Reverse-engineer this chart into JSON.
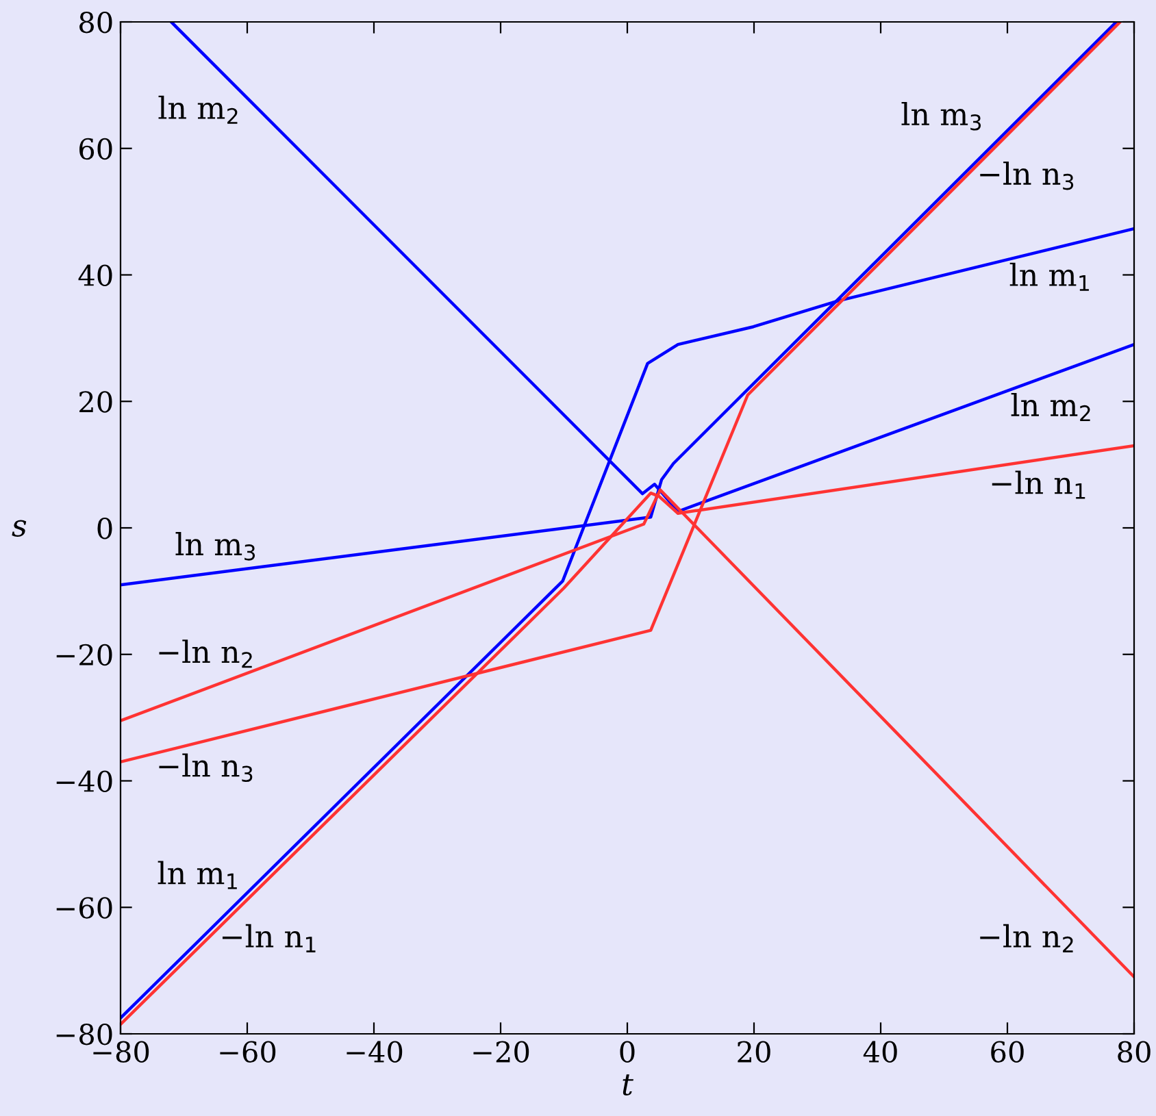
{
  "chart_data": {
    "type": "line",
    "xlabel": "t",
    "ylabel": "s",
    "xlim": [
      -80,
      80
    ],
    "ylim": [
      -80,
      80
    ],
    "xticks": [
      -80,
      -60,
      -40,
      -20,
      0,
      20,
      40,
      60,
      80
    ],
    "yticks": [
      -80,
      -60,
      -40,
      -20,
      0,
      20,
      40,
      60,
      80
    ],
    "grid": false,
    "legend": false,
    "marker": "none",
    "line_style": "solid",
    "series": [
      {
        "color": "#0000ff",
        "x": [
          -80,
          -10.2,
          3.2,
          8,
          19.9,
          33.3,
          80
        ],
        "values": [
          -77.5,
          -8.4,
          26,
          29,
          31.8,
          35.9,
          47.3
        ]
      },
      {
        "color": "#0000ff",
        "x": [
          -72,
          2.4,
          4.3,
          8,
          80
        ],
        "values": [
          80,
          5.4,
          6.9,
          2.6,
          29
        ]
      },
      {
        "color": "#0000ff",
        "x": [
          -80,
          3.7,
          5.4,
          7.3,
          77.2
        ],
        "values": [
          -9,
          1.7,
          7.6,
          10.2,
          80
        ]
      },
      {
        "color": "#ff3333",
        "x": [
          -80,
          -10,
          3.7,
          5,
          8,
          80
        ],
        "values": [
          -78.5,
          -9.5,
          5.5,
          5,
          2.3,
          13
        ]
      },
      {
        "color": "#ff3333",
        "x": [
          -80,
          2.6,
          5.2,
          80
        ],
        "values": [
          -30.5,
          0.6,
          6,
          -71
        ]
      },
      {
        "color": "#ff3333",
        "x": [
          -80,
          3.7,
          19,
          77.8
        ],
        "values": [
          -37,
          -16.2,
          21,
          80
        ]
      }
    ],
    "annotations": [
      "ln m$_{2}$",
      "ln m$_{3}$",
      "−ln n$_{3}$",
      "ln m$_{1}$",
      "ln m$_{2}$",
      "−ln n$_{1}$",
      "ln m$_{3}$",
      "−ln n$_{2}$",
      "−ln n$_{3}$",
      "ln m$_{1}$",
      "−ln n$_{1}$",
      "−ln n$_{2}$"
    ]
  }
}
